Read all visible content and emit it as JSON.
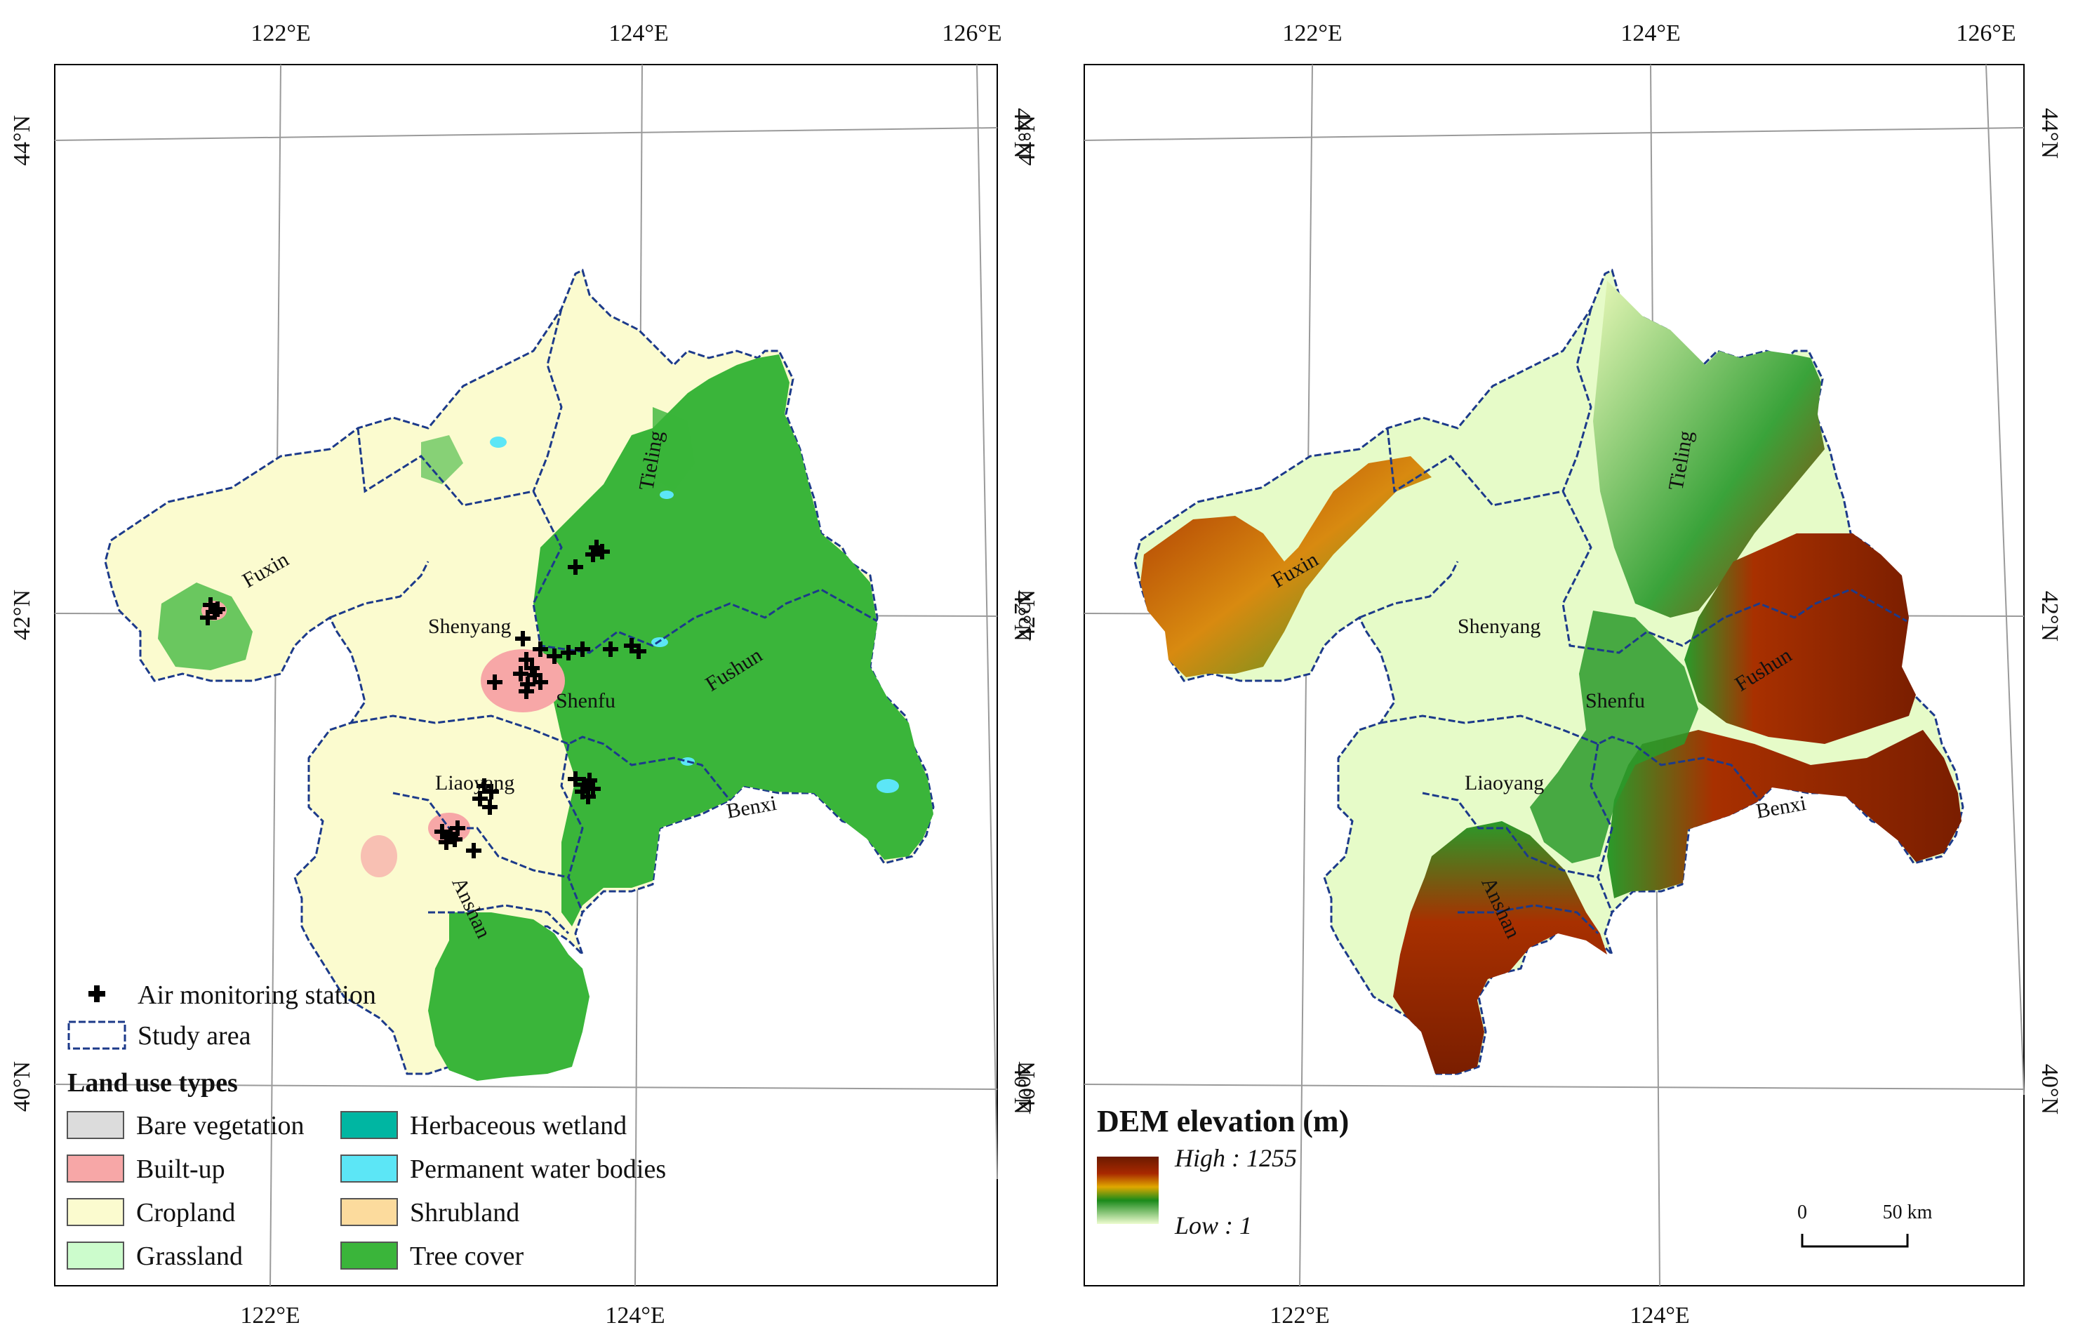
{
  "maps": {
    "left": {
      "top_ticks": [
        "122°E",
        "124°E",
        "126°E"
      ],
      "bottom_ticks": [
        "122°E",
        "124°E"
      ],
      "lat_ticks": [
        "44°N",
        "42°N",
        "40°N"
      ],
      "cities": [
        "Fuxin",
        "Shenyang",
        "Tieling",
        "Fushun",
        "Shenfu",
        "Liaoyang",
        "Benxi",
        "Anshan"
      ],
      "legend": {
        "station_label": "Air monitoring station",
        "study_area_label": "Study area",
        "land_use_title": "Land use types",
        "land_use_types": [
          {
            "label": "Bare vegetation",
            "color": "#dcdcdc"
          },
          {
            "label": "Built-up",
            "color": "#f7a7a7"
          },
          {
            "label": "Cropland",
            "color": "#fbfbcf"
          },
          {
            "label": "Grassland",
            "color": "#ccfccc"
          },
          {
            "label": "Herbaceous wetland",
            "color": "#00b6a2"
          },
          {
            "label": "Permanent water bodies",
            "color": "#5ce6f6"
          },
          {
            "label": "Shrubland",
            "color": "#fcdb9d"
          },
          {
            "label": "Tree cover",
            "color": "#3ab53a"
          }
        ]
      }
    },
    "right": {
      "top_ticks": [
        "122°E",
        "124°E",
        "126°E"
      ],
      "bottom_ticks": [
        "122°E",
        "124°E"
      ],
      "lat_ticks": [
        "44°N",
        "42°N",
        "40°N"
      ],
      "cities": [
        "Fuxin",
        "Shenyang",
        "Tieling",
        "Fushun",
        "Shenfu",
        "Liaoyang",
        "Benxi",
        "Anshan"
      ],
      "legend": {
        "title": "DEM elevation (m)",
        "high_label": "High : 1255",
        "low_label": "Low : 1",
        "ramp_colors": [
          "#6b1a00",
          "#a82800",
          "#e0a800",
          "#1a8a1a",
          "#eefcd0"
        ]
      },
      "scale_bar": {
        "zero": "0",
        "end": "50 km"
      }
    }
  },
  "colors": {
    "boundary": "#1c3a8a",
    "graticule": "#9a9a9a",
    "station": "#000000"
  }
}
